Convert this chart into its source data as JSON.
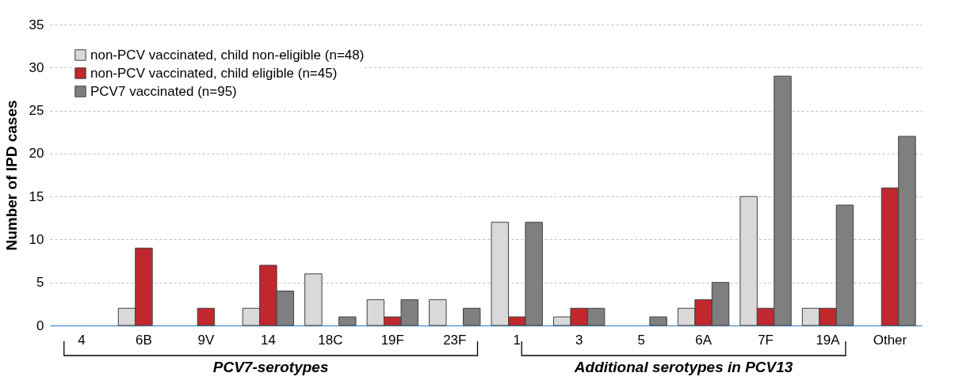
{
  "chart_data": {
    "type": "bar",
    "ylabel": "Number of IPD cases",
    "categories": [
      "4",
      "6B",
      "9V",
      "14",
      "18C",
      "19F",
      "23F",
      "1",
      "3",
      "5",
      "6A",
      "7F",
      "19A",
      "Other"
    ],
    "series": [
      {
        "name": "non-PCV vaccinated, child non-eligible (n=48)",
        "color": "#d9d9d9",
        "values": [
          0,
          2,
          0,
          2,
          6,
          3,
          3,
          12,
          1,
          0,
          2,
          15,
          2,
          0
        ]
      },
      {
        "name": "non-PCV vaccinated, child eligible (n=45)",
        "color": "#c0282d",
        "values": [
          0,
          9,
          2,
          7,
          0,
          1,
          0,
          1,
          2,
          0,
          3,
          2,
          2,
          16
        ]
      },
      {
        "name": "PCV7 vaccinated (n=95)",
        "color": "#7f7f7f",
        "values": [
          0,
          0,
          0,
          4,
          1,
          3,
          2,
          12,
          2,
          1,
          5,
          29,
          14,
          22
        ]
      }
    ],
    "ylim": [
      0,
      35
    ],
    "yticks": [
      0,
      5,
      10,
      15,
      20,
      25,
      30,
      35
    ],
    "grid": "y",
    "legend": "top left",
    "annotations": [
      "PCV7-serotypes",
      "Additional serotypes in PCV13"
    ]
  }
}
